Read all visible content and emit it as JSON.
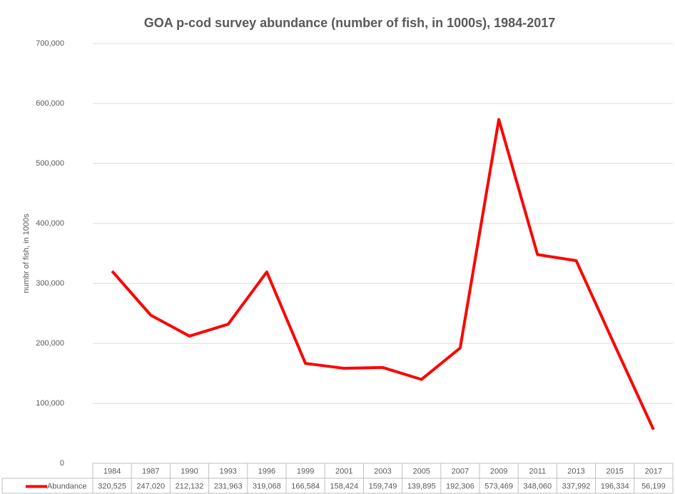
{
  "chart_data": {
    "type": "line",
    "title": "GOA p-cod survey abundance (number of fish, in 1000s), 1984-2017",
    "y_label": "numbr of fish, in 1000s",
    "categories": [
      "1984",
      "1987",
      "1990",
      "1993",
      "1996",
      "1999",
      "2001",
      "2003",
      "2005",
      "2007",
      "2009",
      "2011",
      "2013",
      "2015",
      "2017"
    ],
    "series": [
      {
        "name": "Abundance",
        "color": "#ff0000",
        "values": [
          320525,
          247020,
          212132,
          231963,
          319068,
          166584,
          158424,
          159749,
          139895,
          192306,
          573469,
          348060,
          337992,
          196334,
          56199
        ],
        "value_labels": [
          "320,525",
          "247,020",
          "212,132",
          "231,963",
          "319,068",
          "166,584",
          "158,424",
          "159,749",
          "139,895",
          "192,306",
          "573,469",
          "348,060",
          "337,992",
          "196,334",
          "56,199"
        ]
      }
    ],
    "ylim": [
      0,
      700000
    ],
    "yticks": [
      0,
      {
        "value": 100000,
        "label": "100,000"
      },
      {
        "value": 200000,
        "label": "200,000"
      },
      {
        "value": 300000,
        "label": "300,000"
      },
      {
        "value": 400000,
        "label": "400,000"
      },
      {
        "value": 500000,
        "label": "500,000"
      },
      {
        "value": 600000,
        "label": "600,000"
      },
      {
        "value": 700000,
        "label": "700,000"
      }
    ],
    "grid": true,
    "data_table": true
  }
}
